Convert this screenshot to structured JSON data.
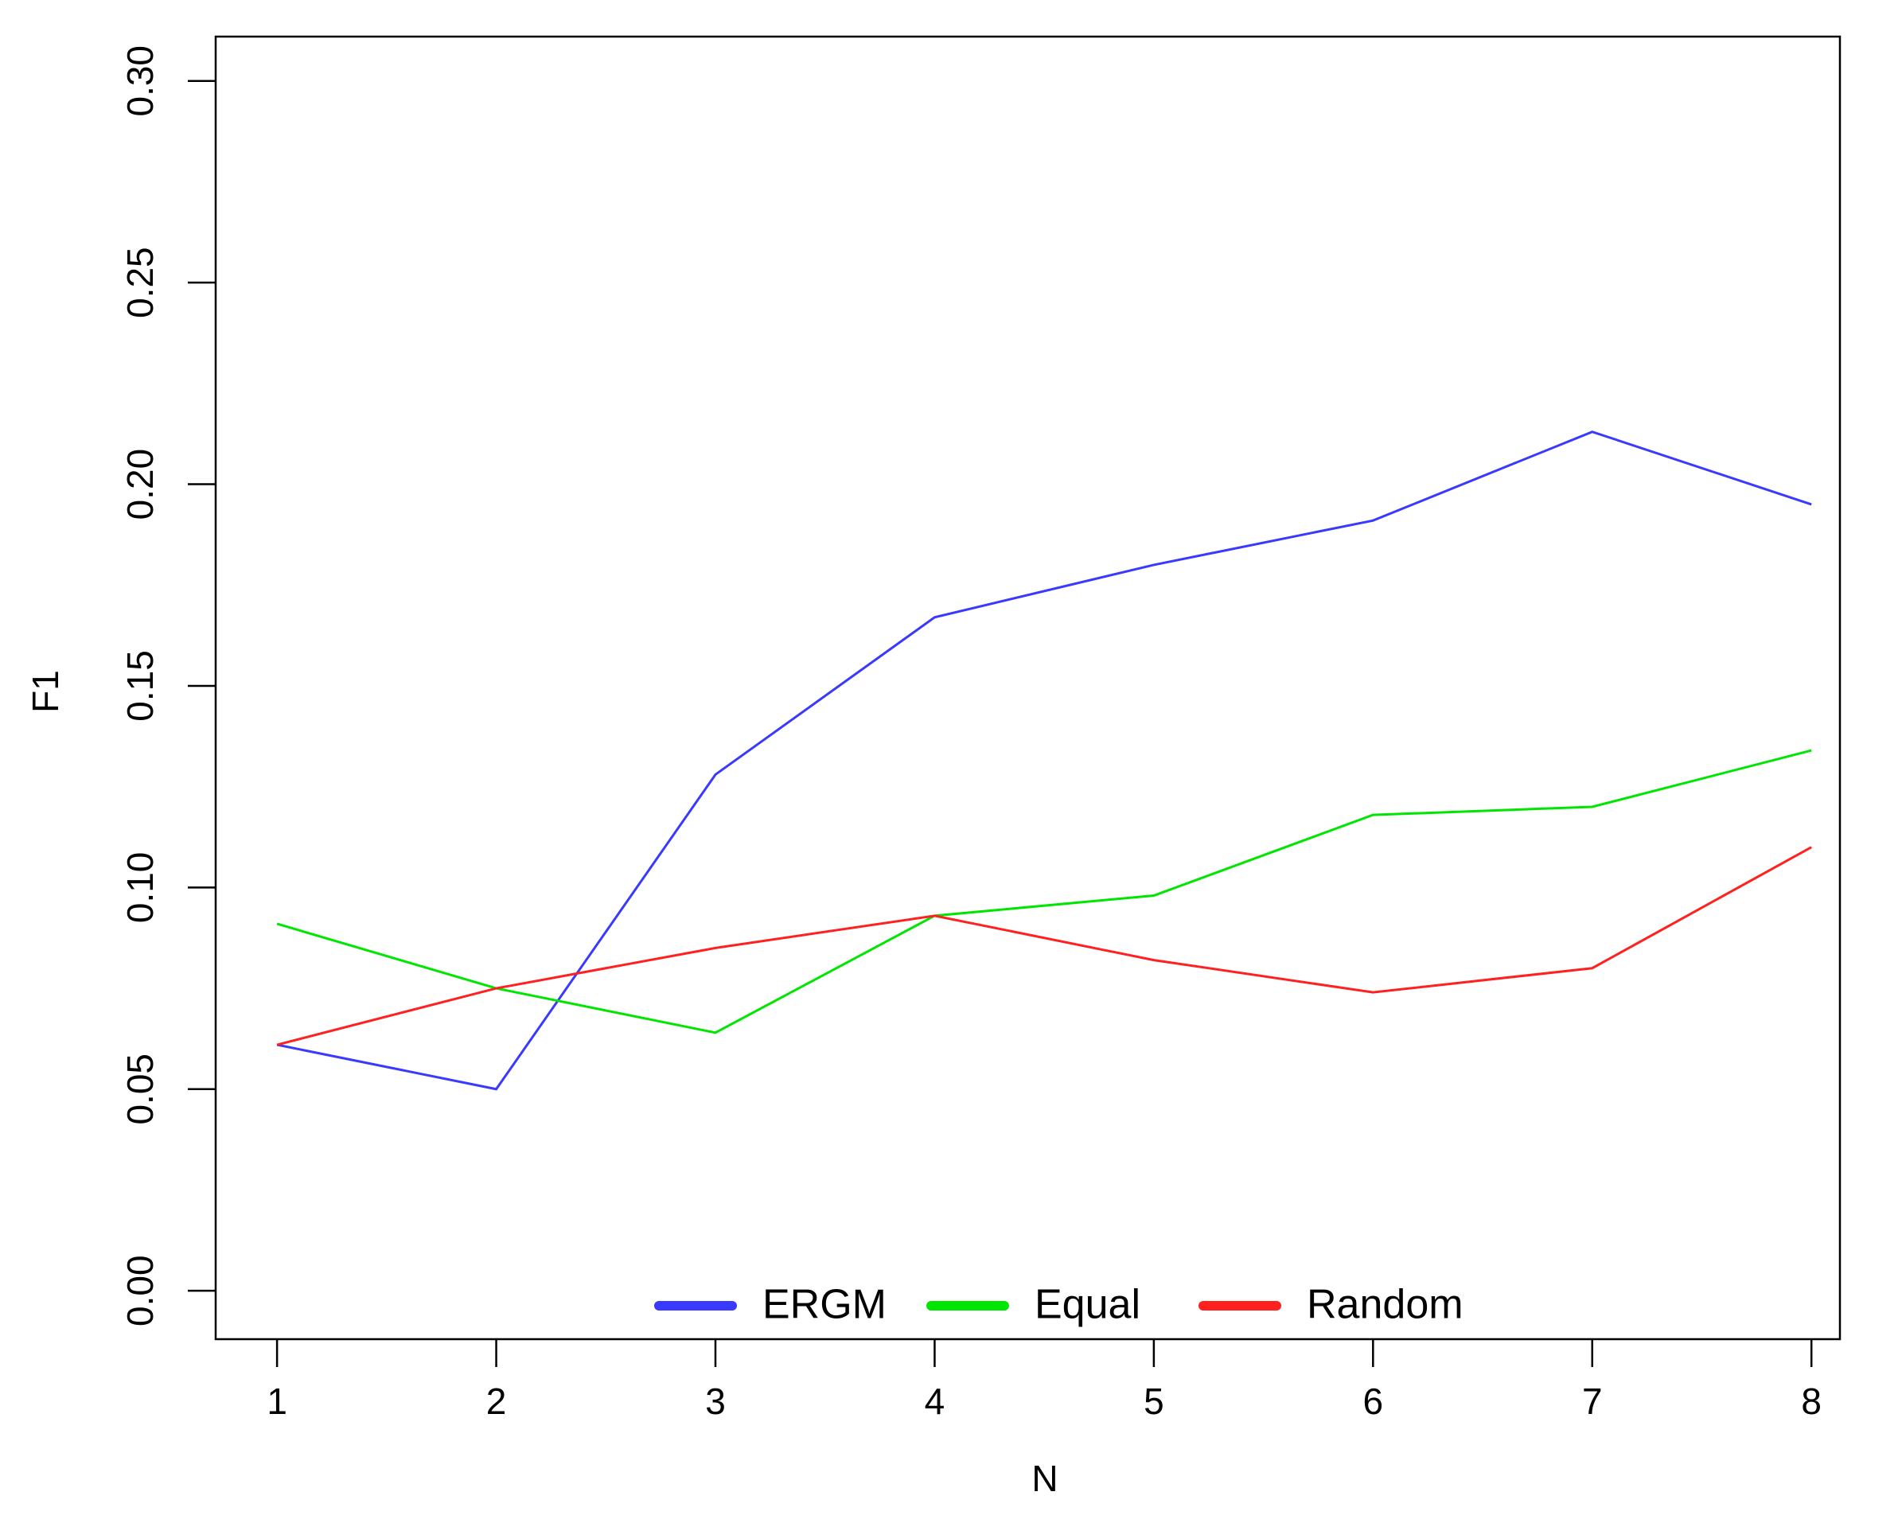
{
  "chart_data": {
    "type": "line",
    "xlabel": "N",
    "ylabel": "F1",
    "x": [
      1,
      2,
      3,
      4,
      5,
      6,
      7,
      8
    ],
    "series": [
      {
        "name": "ERGM",
        "color": "#3a3aff",
        "values": [
          0.061,
          0.05,
          0.128,
          0.167,
          0.18,
          0.191,
          0.213,
          0.195
        ]
      },
      {
        "name": "Equal",
        "color": "#00e600",
        "values": [
          0.091,
          0.075,
          0.064,
          0.093,
          0.098,
          0.118,
          0.12,
          0.134
        ]
      },
      {
        "name": "Random",
        "color": "#ff2020",
        "values": [
          0.061,
          0.075,
          0.085,
          0.093,
          0.082,
          0.074,
          0.08,
          0.11
        ]
      }
    ],
    "xlim": [
      0.72,
      8.13
    ],
    "ylim": [
      -0.012,
      0.311
    ],
    "xticks": [
      1,
      2,
      3,
      4,
      5,
      6,
      7,
      8
    ],
    "yticks": [
      {
        "value": 0,
        "label": "0.00"
      },
      {
        "value": 0.05,
        "label": "0.05"
      },
      {
        "value": 0.1,
        "label": "0.10"
      },
      {
        "value": 0.15,
        "label": "0.15"
      },
      {
        "value": 0.2,
        "label": "0.20"
      },
      {
        "value": 0.25,
        "label": "0.25"
      },
      {
        "value": 0.3,
        "label": "0.30"
      }
    ],
    "legend": "bottom",
    "grid": false
  }
}
